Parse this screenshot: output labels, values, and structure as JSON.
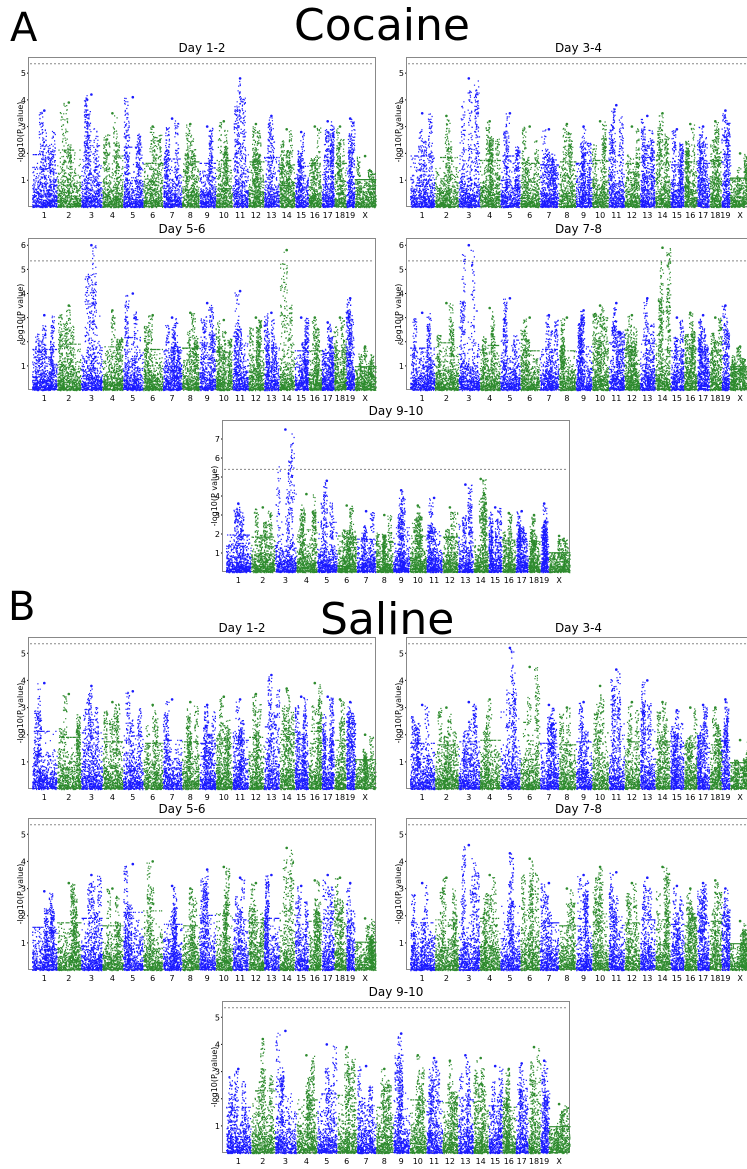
{
  "figure": {
    "panels": [
      {
        "letter": "A",
        "title": "Cocaine"
      },
      {
        "letter": "B",
        "title": "Saline"
      }
    ]
  },
  "chart_data": [
    {
      "group": "Cocaine",
      "title": "Day 1-2",
      "type": "scatter",
      "ylabel": "-log10(P value)",
      "yticks": [
        1,
        2,
        3,
        4,
        5
      ],
      "ylim": [
        0,
        5.6
      ],
      "threshold": 5.35,
      "chromosomes": [
        "1",
        "2",
        "3",
        "4",
        "5",
        "6",
        "7",
        "8",
        "9",
        "10",
        "11",
        "12",
        "13",
        "14",
        "15",
        "16",
        "17",
        "18",
        "19",
        "X"
      ],
      "peaks": [
        3.6,
        3.9,
        4.2,
        3.5,
        4.1,
        3.0,
        3.3,
        3.1,
        3.0,
        3.2,
        4.8,
        3.1,
        3.4,
        2.9,
        2.8,
        3.0,
        3.2,
        3.0,
        3.3,
        1.9
      ]
    },
    {
      "group": "Cocaine",
      "title": "Day 3-4",
      "type": "scatter",
      "ylabel": "-log10(P value)",
      "yticks": [
        1,
        2,
        3,
        4,
        5
      ],
      "ylim": [
        0,
        5.6
      ],
      "threshold": 5.35,
      "chromosomes": [
        "1",
        "2",
        "3",
        "4",
        "5",
        "6",
        "7",
        "8",
        "9",
        "10",
        "11",
        "12",
        "13",
        "14",
        "15",
        "16",
        "17",
        "18",
        "19",
        "X"
      ],
      "peaks": [
        3.5,
        3.4,
        4.8,
        3.2,
        3.5,
        3.0,
        2.9,
        3.1,
        3.0,
        3.2,
        3.8,
        3.0,
        3.4,
        3.5,
        2.9,
        3.1,
        3.0,
        3.2,
        3.6,
        2.0
      ]
    },
    {
      "group": "Cocaine",
      "title": "Day 5-6",
      "type": "scatter",
      "ylabel": "-log10(P value)",
      "yticks": [
        1,
        2,
        3,
        4,
        5,
        6
      ],
      "ylim": [
        0,
        6.3
      ],
      "threshold": 5.35,
      "chromosomes": [
        "1",
        "2",
        "3",
        "4",
        "5",
        "6",
        "7",
        "8",
        "9",
        "10",
        "11",
        "12",
        "13",
        "14",
        "15",
        "16",
        "17",
        "18",
        "19",
        "X"
      ],
      "peaks": [
        3.1,
        3.5,
        6.0,
        3.3,
        4.0,
        3.1,
        3.0,
        3.2,
        3.6,
        2.9,
        4.1,
        3.0,
        3.2,
        5.8,
        3.0,
        3.0,
        2.8,
        3.0,
        3.8,
        1.8
      ]
    },
    {
      "group": "Cocaine",
      "title": "Day 7-8",
      "type": "scatter",
      "ylabel": "-log10(P value)",
      "yticks": [
        1,
        2,
        3,
        4,
        5,
        6
      ],
      "ylim": [
        0,
        6.3
      ],
      "threshold": 5.35,
      "chromosomes": [
        "1",
        "2",
        "3",
        "4",
        "5",
        "6",
        "7",
        "8",
        "9",
        "10",
        "11",
        "12",
        "13",
        "14",
        "15",
        "16",
        "17",
        "18",
        "19",
        "X"
      ],
      "peaks": [
        3.2,
        3.6,
        6.0,
        3.4,
        3.8,
        3.0,
        3.1,
        3.0,
        3.3,
        3.5,
        3.6,
        3.1,
        3.8,
        5.9,
        3.0,
        3.2,
        3.1,
        3.0,
        3.5,
        1.8
      ]
    },
    {
      "group": "Cocaine",
      "title": "Day 9-10",
      "type": "scatter",
      "ylabel": "-log10(P value)",
      "yticks": [
        1,
        2,
        3,
        4,
        5,
        6,
        7
      ],
      "ylim": [
        0,
        8.0
      ],
      "threshold": 5.4,
      "chromosomes": [
        "1",
        "2",
        "3",
        "4",
        "5",
        "6",
        "7",
        "8",
        "9",
        "10",
        "11",
        "12",
        "13",
        "14",
        "15",
        "16",
        "17",
        "18",
        "19",
        "X"
      ],
      "peaks": [
        3.6,
        3.4,
        7.5,
        4.1,
        4.8,
        3.5,
        3.2,
        3.0,
        4.3,
        3.5,
        3.9,
        3.4,
        4.6,
        4.9,
        3.4,
        3.1,
        3.2,
        3.0,
        3.6,
        1.9
      ]
    },
    {
      "group": "Saline",
      "title": "Day 1-2",
      "type": "scatter",
      "ylabel": "-log10(P value)",
      "yticks": [
        1,
        2,
        3,
        4,
        5
      ],
      "ylim": [
        0,
        5.6
      ],
      "threshold": 5.35,
      "chromosomes": [
        "1",
        "2",
        "3",
        "4",
        "5",
        "6",
        "7",
        "8",
        "9",
        "10",
        "11",
        "12",
        "13",
        "14",
        "15",
        "16",
        "17",
        "18",
        "19",
        "X"
      ],
      "peaks": [
        3.9,
        3.5,
        3.8,
        3.2,
        3.6,
        3.1,
        3.3,
        3.2,
        3.1,
        3.4,
        3.3,
        3.5,
        4.2,
        3.7,
        3.4,
        3.9,
        3.4,
        3.3,
        3.2,
        2.0
      ]
    },
    {
      "group": "Saline",
      "title": "Day 3-4",
      "type": "scatter",
      "ylabel": "-log10(P value)",
      "yticks": [
        1,
        2,
        3,
        4,
        5
      ],
      "ylim": [
        0,
        5.6
      ],
      "threshold": 5.35,
      "chromosomes": [
        "1",
        "2",
        "3",
        "4",
        "5",
        "6",
        "7",
        "8",
        "9",
        "10",
        "11",
        "12",
        "13",
        "14",
        "15",
        "16",
        "17",
        "18",
        "19",
        "X"
      ],
      "peaks": [
        3.1,
        3.0,
        3.2,
        3.3,
        5.2,
        4.5,
        3.1,
        3.0,
        3.2,
        3.8,
        4.4,
        3.2,
        4.0,
        3.2,
        2.9,
        3.0,
        3.1,
        3.0,
        3.3,
        1.8
      ]
    },
    {
      "group": "Saline",
      "title": "Day 5-6",
      "type": "scatter",
      "ylabel": "-log10(P value)",
      "yticks": [
        1,
        2,
        3,
        4,
        5
      ],
      "ylim": [
        0,
        5.6
      ],
      "threshold": 5.35,
      "chromosomes": [
        "1",
        "2",
        "3",
        "4",
        "5",
        "6",
        "7",
        "8",
        "9",
        "10",
        "11",
        "12",
        "13",
        "14",
        "15",
        "16",
        "17",
        "18",
        "19",
        "X"
      ],
      "peaks": [
        2.9,
        3.2,
        3.5,
        3.0,
        3.9,
        4.0,
        3.1,
        3.0,
        3.7,
        3.8,
        3.4,
        3.2,
        3.5,
        4.5,
        3.1,
        3.3,
        3.5,
        3.4,
        3.2,
        1.9
      ]
    },
    {
      "group": "Saline",
      "title": "Day 7-8",
      "type": "scatter",
      "ylabel": "-log10(P value)",
      "yticks": [
        1,
        2,
        3,
        4,
        5
      ],
      "ylim": [
        0,
        5.6
      ],
      "threshold": 5.35,
      "chromosomes": [
        "1",
        "2",
        "3",
        "4",
        "5",
        "6",
        "7",
        "8",
        "9",
        "10",
        "11",
        "12",
        "13",
        "14",
        "15",
        "16",
        "17",
        "18",
        "19",
        "X"
      ],
      "peaks": [
        3.2,
        3.4,
        4.6,
        3.5,
        4.3,
        4.1,
        3.2,
        3.0,
        3.5,
        3.8,
        3.6,
        3.2,
        3.4,
        3.8,
        3.1,
        3.0,
        3.2,
        3.3,
        3.0,
        1.8
      ]
    },
    {
      "group": "Saline",
      "title": "Day 9-10",
      "type": "scatter",
      "ylabel": "-log10(P value)",
      "yticks": [
        1,
        2,
        3,
        4,
        5
      ],
      "ylim": [
        0,
        5.6
      ],
      "threshold": 5.35,
      "chromosomes": [
        "1",
        "2",
        "3",
        "4",
        "5",
        "6",
        "7",
        "8",
        "9",
        "10",
        "11",
        "12",
        "13",
        "14",
        "15",
        "16",
        "17",
        "18",
        "19",
        "X"
      ],
      "peaks": [
        3.1,
        4.2,
        4.5,
        3.6,
        4.0,
        3.9,
        3.2,
        3.1,
        4.4,
        3.6,
        3.5,
        3.4,
        3.6,
        3.5,
        3.2,
        3.1,
        3.3,
        3.9,
        3.4,
        1.8
      ]
    }
  ],
  "colors": {
    "odd_chromosome": "#1a1aff",
    "even_chromosome": "#2e8b2e",
    "threshold": "#888888",
    "frame": "#888888"
  }
}
